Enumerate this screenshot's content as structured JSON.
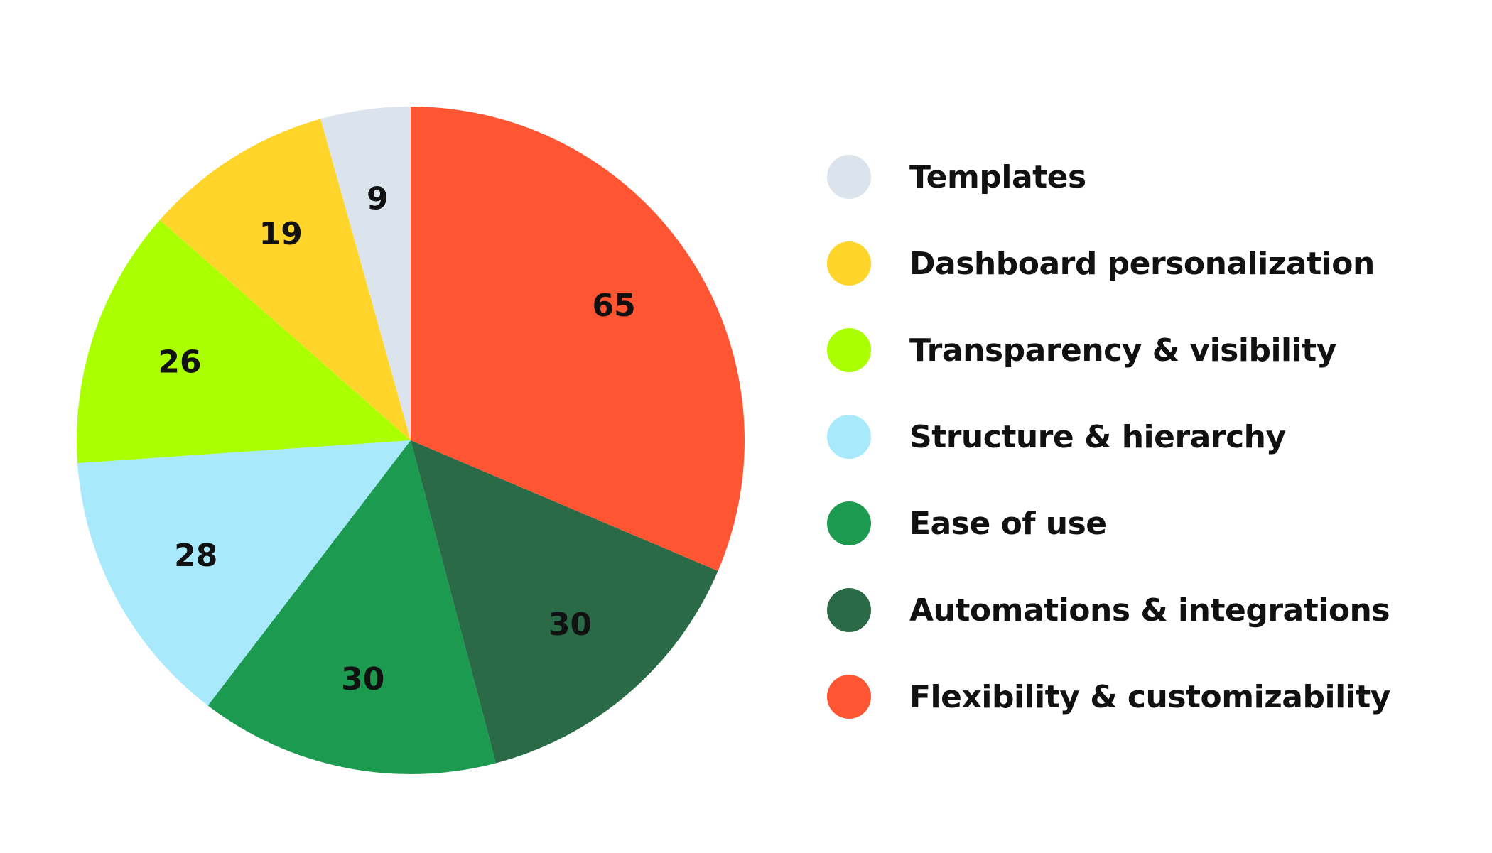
{
  "chart_data": {
    "type": "pie",
    "categories": [
      "Flexibility & customizability",
      "Automations & integrations",
      "Ease of use",
      "Structure & hierarchy",
      "Transparency & visibility",
      "Dashboard personalization",
      "Templates"
    ],
    "values": [
      65,
      30,
      30,
      28,
      26,
      19,
      9
    ],
    "colors": [
      "#FF5533",
      "#2B6A47",
      "#1B9A50",
      "#A8E9FC",
      "#AAFF00",
      "#FFD52B",
      "#DBE4EC"
    ],
    "data_labels": [
      "65",
      "30",
      "30",
      "28",
      "26",
      "19",
      "9"
    ],
    "start_angle": "12 o'clock",
    "direction": "clockwise",
    "legend": {
      "placement": "right",
      "items": [
        {
          "label": "Templates",
          "color": "#DBE4EC"
        },
        {
          "label": "Dashboard personalization",
          "color": "#FFD52B"
        },
        {
          "label": "Transparency & visibility",
          "color": "#AAFF00"
        },
        {
          "label": "Structure & hierarchy",
          "color": "#A8E9FC"
        },
        {
          "label": "Ease of use",
          "color": "#1B9A50"
        },
        {
          "label": "Automations & integrations",
          "color": "#2B6A47"
        },
        {
          "label": "Flexibility & customizability",
          "color": "#FF5533"
        }
      ]
    }
  }
}
